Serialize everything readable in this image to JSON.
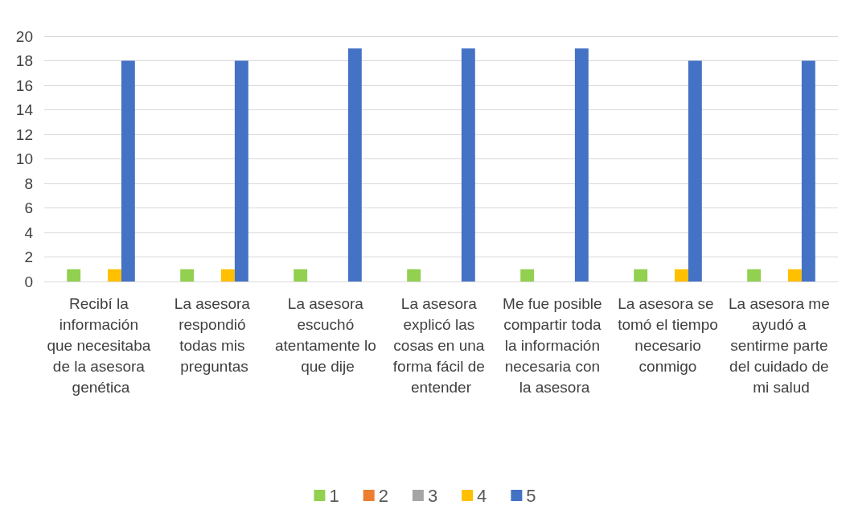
{
  "chart_data": {
    "type": "bar",
    "categories": [
      "Recibí la información que necesitaba de la asesora genética",
      "La asesora respondió todas mis preguntas",
      "La asesora escuchó atentamente lo que dije",
      "La asesora explicó las cosas en una forma fácil de entender",
      "Me fue posible compartir toda la información necesaria con la asesora",
      "La asesora se tomó el tiempo necesario conmigo",
      "La asesora me ayudó a sentirme parte del cuidado de mi salud"
    ],
    "series": [
      {
        "name": "1",
        "color": "#92d050",
        "values": [
          1,
          1,
          1,
          1,
          1,
          1,
          1
        ]
      },
      {
        "name": "2",
        "color": "#ed7d31",
        "values": [
          0,
          0,
          0,
          0,
          0,
          0,
          0
        ]
      },
      {
        "name": "3",
        "color": "#a5a5a5",
        "values": [
          0,
          0,
          0,
          0,
          0,
          0,
          0
        ]
      },
      {
        "name": "4",
        "color": "#ffc000",
        "values": [
          1,
          1,
          0,
          0,
          0,
          1,
          1
        ]
      },
      {
        "name": "5",
        "color": "#4472c4",
        "values": [
          18,
          18,
          19,
          19,
          19,
          18,
          18
        ]
      }
    ],
    "ylim": [
      0,
      20
    ],
    "yticks": [
      0,
      2,
      4,
      6,
      8,
      10,
      12,
      14,
      16,
      18,
      20
    ],
    "grid": "y",
    "legend": "bottom"
  }
}
